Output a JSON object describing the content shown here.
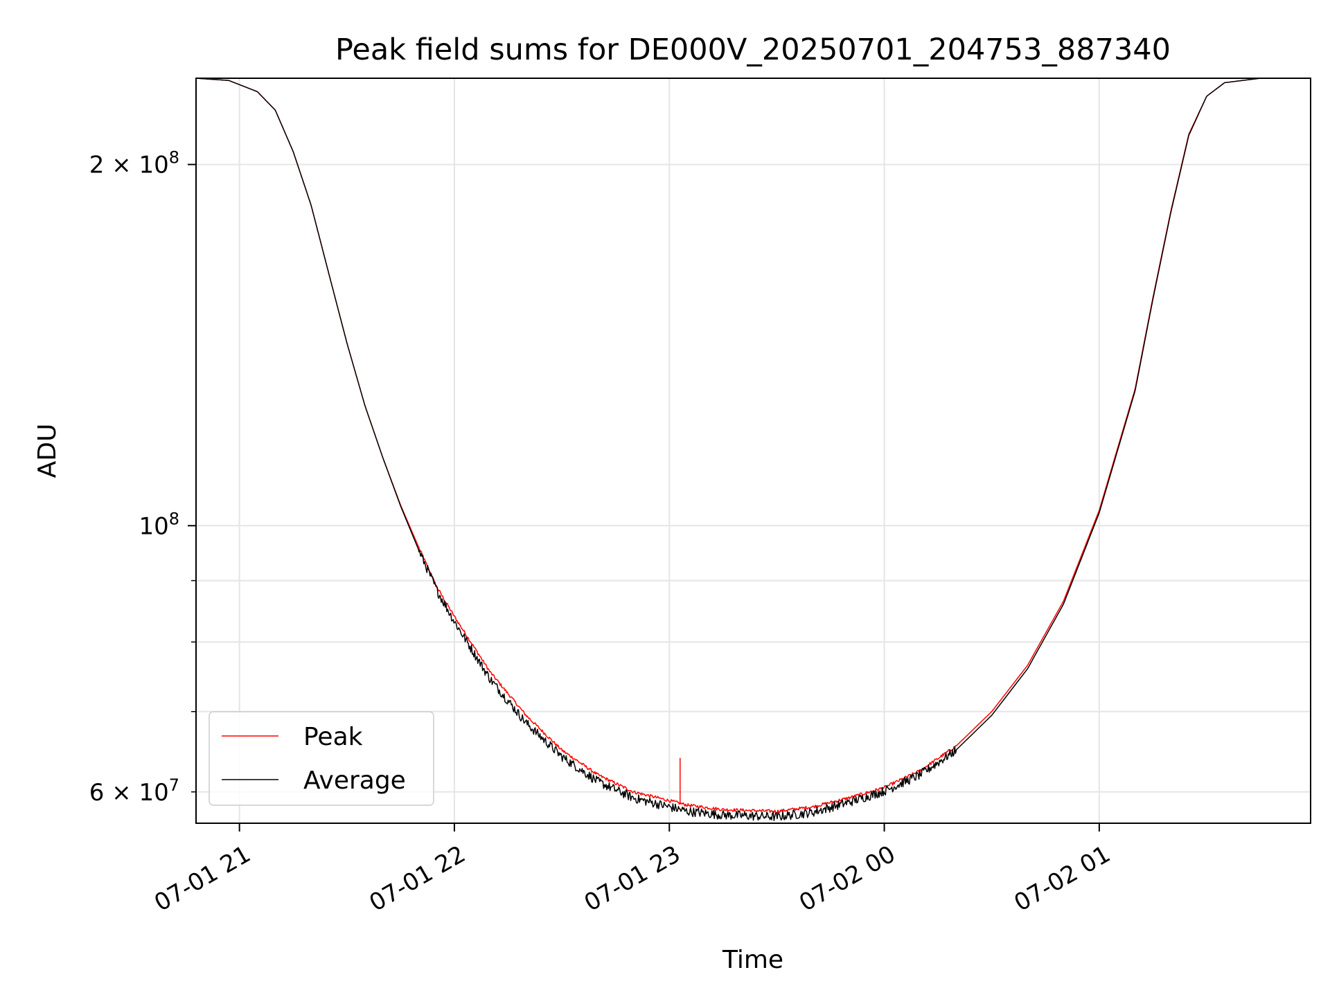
{
  "chart_data": {
    "type": "line",
    "title": "Peak field sums for DE000V_20250701_204753_887340",
    "xlabel": "Time",
    "ylabel": "ADU",
    "yscale": "log",
    "xlim": [
      "2025-07-01T20:47:53",
      "2025-07-02T01:59:00"
    ],
    "ylim": [
      56500000,
      236000000
    ],
    "x_ticks": [
      {
        "value": "2025-07-01T21:00:00",
        "label": "07-01 21"
      },
      {
        "value": "2025-07-01T22:00:00",
        "label": "07-01 22"
      },
      {
        "value": "2025-07-01T23:00:00",
        "label": "07-01 23"
      },
      {
        "value": "2025-07-02T00:00:00",
        "label": "07-02 00"
      },
      {
        "value": "2025-07-02T01:00:00",
        "label": "07-02 01"
      }
    ],
    "y_major_ticks": [
      {
        "value": 100000000,
        "base": "10",
        "exp": "8"
      },
      {
        "value": 200000000,
        "base": "2 × 10",
        "exp": "8"
      }
    ],
    "y_minor_ticks": [
      60000000,
      70000000,
      80000000,
      90000000
    ],
    "y_minor_labels": [
      {
        "value": 60000000,
        "base": "6 × 10",
        "exp": "7"
      }
    ],
    "grid": true,
    "legend_position": "lower-left",
    "series": [
      {
        "name": "Peak",
        "color": "#ff0000",
        "points": [
          [
            "2025-07-01T20:47:53",
            236000000
          ],
          [
            "2025-07-01T20:57:00",
            235000000
          ],
          [
            "2025-07-01T21:05:00",
            230000000
          ],
          [
            "2025-07-01T21:10:00",
            222000000
          ],
          [
            "2025-07-01T21:15:00",
            205000000
          ],
          [
            "2025-07-01T21:20:00",
            185000000
          ],
          [
            "2025-07-01T21:25:00",
            162000000
          ],
          [
            "2025-07-01T21:30:00",
            142000000
          ],
          [
            "2025-07-01T21:35:00",
            126000000
          ],
          [
            "2025-07-01T21:40:00",
            114000000
          ],
          [
            "2025-07-01T21:45:00",
            104000000
          ],
          [
            "2025-07-01T21:50:00",
            96000000
          ],
          [
            "2025-07-01T21:55:00",
            89000000
          ],
          [
            "2025-07-01T22:00:00",
            84000000
          ],
          [
            "2025-07-01T22:10:00",
            75500000
          ],
          [
            "2025-07-01T22:20:00",
            69500000
          ],
          [
            "2025-07-01T22:30:00",
            65000000
          ],
          [
            "2025-07-01T22:40:00",
            62000000
          ],
          [
            "2025-07-01T22:50:00",
            60000000
          ],
          [
            "2025-07-01T23:00:00",
            59000000
          ],
          [
            "2025-07-01T23:05:00",
            58500000
          ],
          [
            "2025-07-01T23:15:00",
            58000000
          ],
          [
            "2025-07-01T23:30:00",
            57800000
          ],
          [
            "2025-07-01T23:40:00",
            58300000
          ],
          [
            "2025-07-01T23:50:00",
            59300000
          ],
          [
            "2025-07-02T00:00:00",
            60500000
          ],
          [
            "2025-07-02T00:10:00",
            62500000
          ],
          [
            "2025-07-02T00:20:00",
            65500000
          ],
          [
            "2025-07-02T00:30:00",
            70000000
          ],
          [
            "2025-07-02T00:40:00",
            76500000
          ],
          [
            "2025-07-02T00:50:00",
            86500000
          ],
          [
            "2025-07-02T01:00:00",
            103000000
          ],
          [
            "2025-07-02T01:10:00",
            130000000
          ],
          [
            "2025-07-02T01:15:00",
            155000000
          ],
          [
            "2025-07-02T01:20:00",
            183000000
          ],
          [
            "2025-07-02T01:25:00",
            212000000
          ],
          [
            "2025-07-02T01:30:00",
            228000000
          ],
          [
            "2025-07-02T01:35:00",
            234000000
          ],
          [
            "2025-07-02T01:45:00",
            236000000
          ],
          [
            "2025-07-02T01:59:00",
            236000000
          ]
        ],
        "spikes": [
          [
            "2025-07-01T23:03:00",
            64000000
          ]
        ]
      },
      {
        "name": "Average",
        "color": "#000000",
        "points": [
          [
            "2025-07-01T20:47:53",
            236000000
          ],
          [
            "2025-07-01T20:57:00",
            235000000
          ],
          [
            "2025-07-01T21:05:00",
            230000000
          ],
          [
            "2025-07-01T21:10:00",
            222000000
          ],
          [
            "2025-07-01T21:15:00",
            205000000
          ],
          [
            "2025-07-01T21:20:00",
            185000000
          ],
          [
            "2025-07-01T21:25:00",
            162000000
          ],
          [
            "2025-07-01T21:30:00",
            142000000
          ],
          [
            "2025-07-01T21:35:00",
            126000000
          ],
          [
            "2025-07-01T21:40:00",
            114000000
          ],
          [
            "2025-07-01T21:45:00",
            103800000
          ],
          [
            "2025-07-01T21:50:00",
            95500000
          ],
          [
            "2025-07-01T21:55:00",
            88500000
          ],
          [
            "2025-07-01T22:00:00",
            83200000
          ],
          [
            "2025-07-01T22:10:00",
            74500000
          ],
          [
            "2025-07-01T22:20:00",
            68500000
          ],
          [
            "2025-07-01T22:30:00",
            64200000
          ],
          [
            "2025-07-01T22:40:00",
            61200000
          ],
          [
            "2025-07-01T22:50:00",
            59300000
          ],
          [
            "2025-07-01T23:00:00",
            58300000
          ],
          [
            "2025-07-01T23:05:00",
            57800000
          ],
          [
            "2025-07-01T23:15:00",
            57400000
          ],
          [
            "2025-07-01T23:30:00",
            57200000
          ],
          [
            "2025-07-01T23:40:00",
            57700000
          ],
          [
            "2025-07-01T23:50:00",
            58800000
          ],
          [
            "2025-07-02T00:00:00",
            60100000
          ],
          [
            "2025-07-02T00:10:00",
            62000000
          ],
          [
            "2025-07-02T00:20:00",
            65000000
          ],
          [
            "2025-07-02T00:30:00",
            69500000
          ],
          [
            "2025-07-02T00:40:00",
            76000000
          ],
          [
            "2025-07-02T00:50:00",
            86000000
          ],
          [
            "2025-07-02T01:00:00",
            102500000
          ],
          [
            "2025-07-02T01:10:00",
            129500000
          ],
          [
            "2025-07-02T01:15:00",
            154500000
          ],
          [
            "2025-07-02T01:20:00",
            182500000
          ],
          [
            "2025-07-02T01:25:00",
            211500000
          ],
          [
            "2025-07-02T01:30:00",
            228000000
          ],
          [
            "2025-07-02T01:35:00",
            234000000
          ],
          [
            "2025-07-02T01:45:00",
            236000000
          ],
          [
            "2025-07-02T01:59:00",
            236000000
          ]
        ],
        "noise_range": [
          "2025-07-01T21:50:00",
          "2025-07-02T00:20:00"
        ]
      }
    ]
  }
}
